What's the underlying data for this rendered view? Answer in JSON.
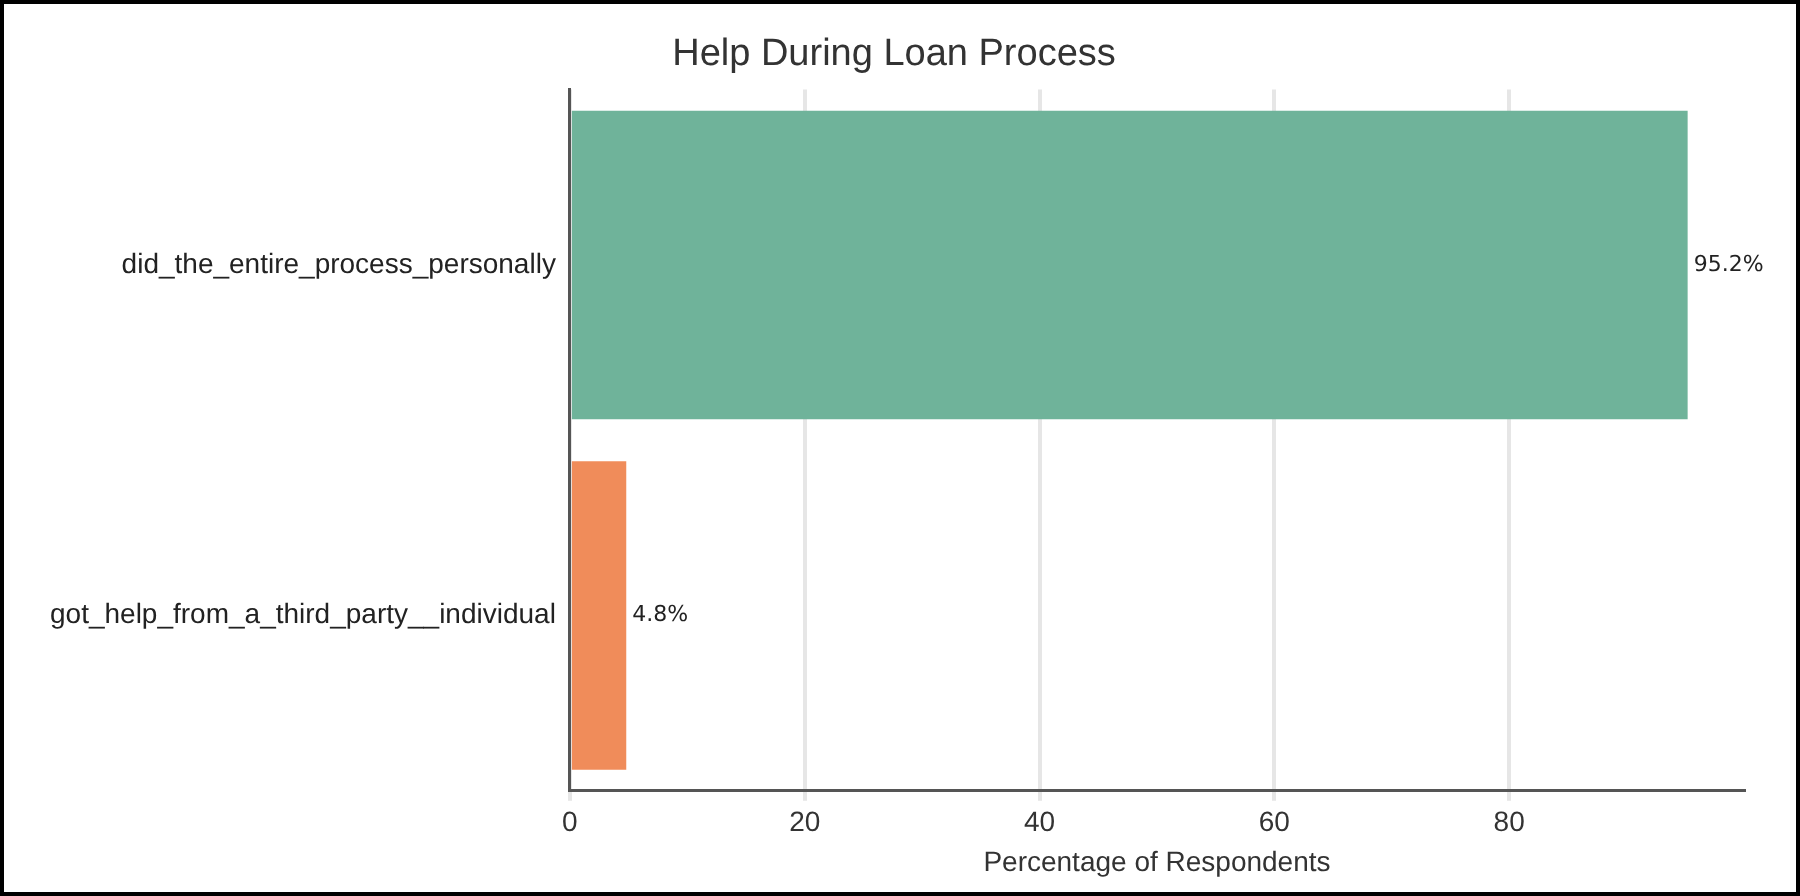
{
  "chart_data": {
    "type": "bar",
    "orientation": "horizontal",
    "title": "Help During Loan Process",
    "xlabel": "Percentage of Respondents",
    "categories": [
      "did_the_entire_process_personally",
      "got_help_from_a_third_party__individual"
    ],
    "values": [
      95.2,
      4.8
    ],
    "colors": [
      "#6fb39a",
      "#f08c5a"
    ],
    "value_labels": [
      "95.2%",
      "4.8%"
    ],
    "xlim": [
      0,
      100
    ],
    "xticks": [
      0,
      20,
      40,
      60,
      80
    ],
    "grid": "x"
  }
}
